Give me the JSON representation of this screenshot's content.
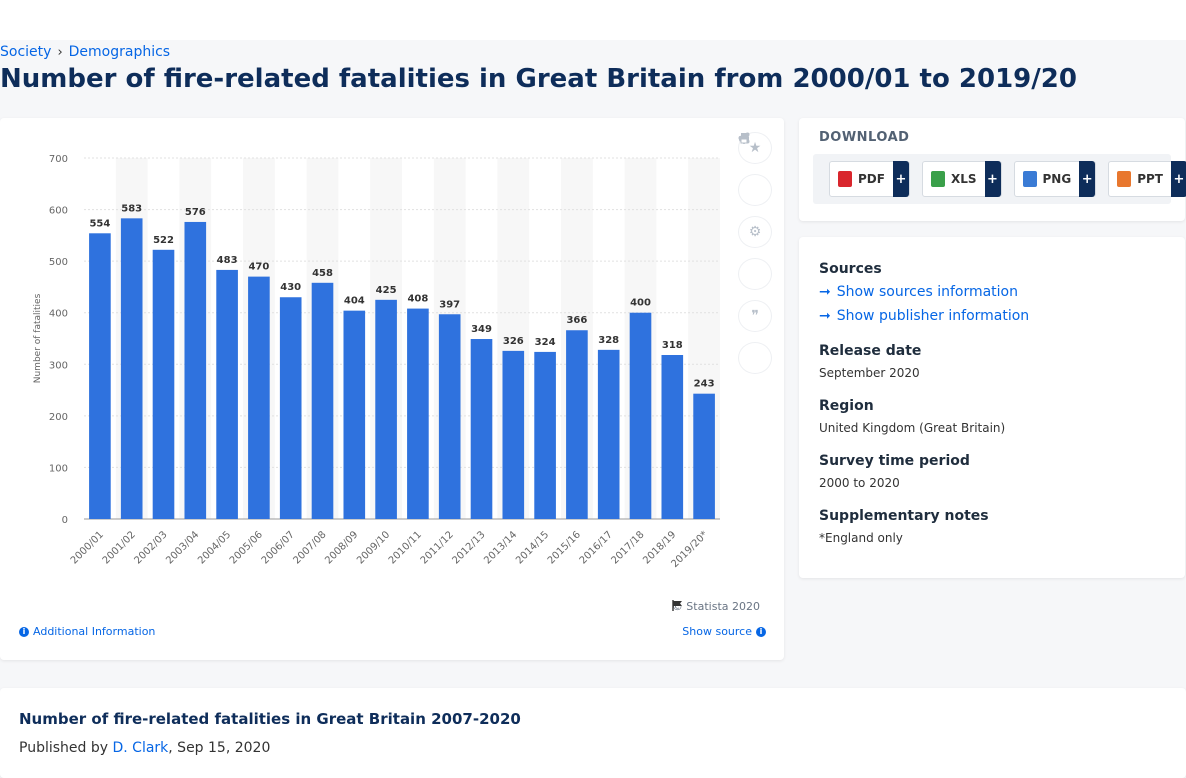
{
  "breadcrumb": {
    "items": [
      "Society",
      "Demographics"
    ],
    "separator": "›"
  },
  "page_title": "Number of fire-related fatalities in Great Britain from 2000/01 to 2019/20",
  "chart_data": {
    "type": "bar",
    "title": "",
    "xlabel": "",
    "ylabel": "Number of fatalities",
    "ylim": [
      0,
      700
    ],
    "yticks": [
      0,
      100,
      200,
      300,
      400,
      500,
      600,
      700
    ],
    "grid": true,
    "categories": [
      "2000/01",
      "2001/02",
      "2002/03",
      "2003/04",
      "2004/05",
      "2005/06",
      "2006/07",
      "2007/08",
      "2008/09",
      "2009/10",
      "2010/11",
      "2011/12",
      "2012/13",
      "2013/14",
      "2014/15",
      "2015/16",
      "2016/17",
      "2017/18",
      "2018/19",
      "2019/20*"
    ],
    "values": [
      554,
      583,
      522,
      576,
      483,
      470,
      430,
      458,
      404,
      425,
      408,
      397,
      349,
      326,
      324,
      366,
      328,
      400,
      318,
      243
    ],
    "bar_color": "#2f72de"
  },
  "tools": [
    {
      "name": "star-icon",
      "glyph": "★"
    },
    {
      "name": "bell-icon",
      "glyph": "🔔"
    },
    {
      "name": "gear-icon",
      "glyph": "⚙"
    },
    {
      "name": "share-icon",
      "glyph": "⋖"
    },
    {
      "name": "quote-icon",
      "glyph": "❞"
    },
    {
      "name": "print-icon",
      "glyph": "⎙"
    }
  ],
  "footer": {
    "copyright": "© Statista 2020",
    "additional_info": "Additional Information",
    "show_source": "Show source"
  },
  "download": {
    "title": "DOWNLOAD",
    "buttons": [
      {
        "label": "PDF",
        "color": "#d9262d"
      },
      {
        "label": "XLS",
        "color": "#3aa04a"
      },
      {
        "label": "PNG",
        "color": "#3a7bd5"
      },
      {
        "label": "PPT",
        "color": "#e8772e"
      }
    ],
    "plus": "+"
  },
  "meta": {
    "sources_label": "Sources",
    "show_sources": "Show sources information",
    "show_publisher": "Show publisher information",
    "release_label": "Release date",
    "release_value": "September 2020",
    "region_label": "Region",
    "region_value": "United Kingdom (Great Britain)",
    "survey_label": "Survey time period",
    "survey_value": "2000 to 2020",
    "notes_label": "Supplementary notes",
    "notes_value": "*England only"
  },
  "article": {
    "title": "Number of fire-related fatalities in Great Britain 2007-2020",
    "published_prefix": "Published by",
    "author": "D. Clark",
    "date": ", Sep 15, 2020"
  }
}
